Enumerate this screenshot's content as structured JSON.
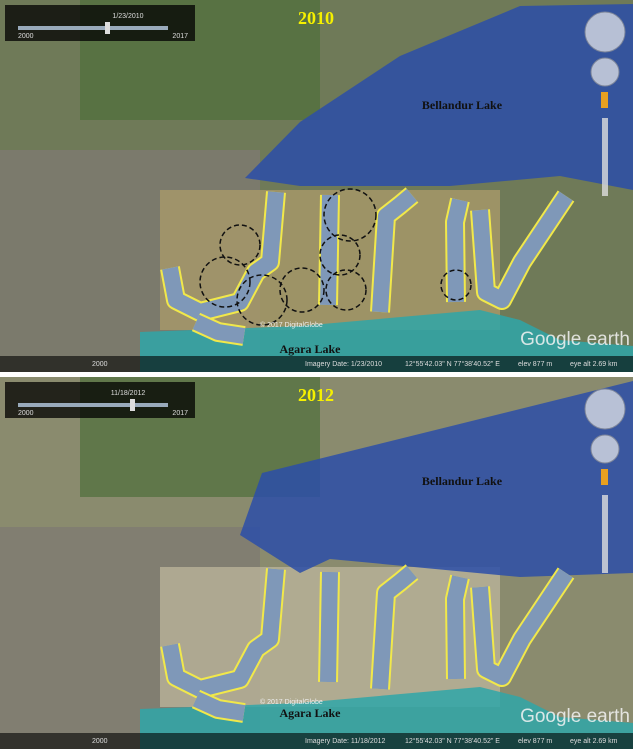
{
  "panels": [
    {
      "year": "2010",
      "slider_date": "1/23/2010",
      "slider_start": "2000",
      "slider_end": "2017",
      "lake_north": "Bellandur Lake",
      "lake_south": "Agara Lake",
      "copyright": "© 2017 DigitalGlobe",
      "imagery_date": "Imagery Date: 1/23/2010",
      "coordinates": "12°55'42.03\" N  77°38'40.52\" E",
      "elevation": "elev  877 m",
      "eye_alt": "eye alt  2.69 km",
      "logo": "Google earth",
      "scale_year": "2000"
    },
    {
      "year": "2012",
      "slider_date": "11/18/2012",
      "slider_start": "2000",
      "slider_end": "2017",
      "lake_north": "Bellandur Lake",
      "lake_south": "Agara Lake",
      "copyright": "© 2017 DigitalGlobe",
      "imagery_date": "Imagery Date: 11/18/2012",
      "coordinates": "12°55'42.03\" N  77°38'40.52\" E",
      "elevation": "elev  877 m",
      "eye_alt": "eye alt  2.69 km",
      "logo": "Google earth",
      "scale_year": "2000"
    }
  ]
}
